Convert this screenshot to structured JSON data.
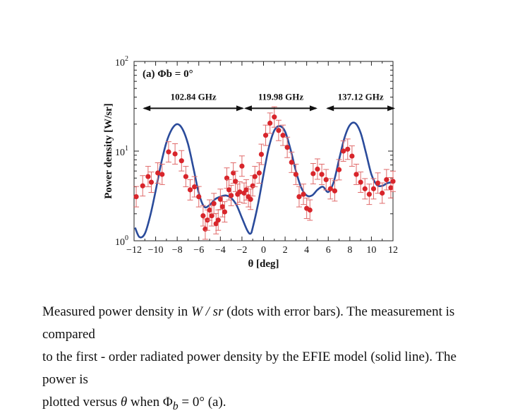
{
  "chart_data": {
    "type": "scatter",
    "title": "",
    "panel_label": "(a) Φb = 0°",
    "xlabel": "θ [deg]",
    "ylabel": "Power density [W/sr]",
    "xlim": [
      -12,
      12
    ],
    "ylim": [
      1,
      100
    ],
    "yscale": "log",
    "x_ticks": [
      -12,
      -10,
      -8,
      -6,
      -4,
      -2,
      0,
      2,
      4,
      6,
      8,
      10,
      12
    ],
    "x_tick_labels": [
      "−12",
      "−10",
      "−8",
      "−6",
      "−4",
      "−2",
      "0",
      "2",
      "4",
      "6",
      "8",
      "10",
      "12"
    ],
    "y_ticks": [
      {
        "value": 1,
        "base": "10",
        "exp": "0"
      },
      {
        "value": 10,
        "base": "10",
        "exp": "1"
      },
      {
        "value": 100,
        "base": "10",
        "exp": "2"
      }
    ],
    "grid": false,
    "frequency_bands": [
      {
        "label": "102.84 GHz",
        "x_start": -11.2,
        "x_end": -1.8,
        "y": 30
      },
      {
        "label": "119.98 GHz",
        "x_start": -1.8,
        "x_end": 5.0,
        "y": 30
      },
      {
        "label": "137.12 GHz",
        "x_start": 5.8,
        "x_end": 12.2,
        "y": 30
      }
    ],
    "series": [
      {
        "name": "EFIE model (solid line)",
        "kind": "line",
        "color": "#2a4b9b",
        "x": [
          -11.9,
          -11.5,
          -11,
          -10.5,
          -10,
          -9.5,
          -9,
          -8.5,
          -8,
          -7.5,
          -7,
          -6.5,
          -6,
          -5.5,
          -5,
          -4.5,
          -4,
          -3.5,
          -3,
          -2.5,
          -2,
          -1.5,
          -1.2,
          -1,
          -0.5,
          0,
          0.5,
          1,
          1.5,
          2,
          2.5,
          3,
          3.5,
          4,
          4.5,
          5,
          5.5,
          6,
          6.5,
          7,
          7.5,
          8,
          8.5,
          9,
          9.5,
          10,
          10.5,
          11,
          11.5,
          12
        ],
        "y": [
          1.4,
          1.1,
          1.2,
          1.9,
          3.6,
          7.2,
          12.5,
          17.5,
          20,
          17.5,
          12,
          6.5,
          3.4,
          2.4,
          2.5,
          2.9,
          3.1,
          3.2,
          3.0,
          2.5,
          1.8,
          1.3,
          1.2,
          1.4,
          2.6,
          5.5,
          11,
          17,
          19,
          16.5,
          10.5,
          6,
          3.9,
          3.2,
          3.2,
          3.7,
          4,
          3.5,
          4.5,
          8,
          14,
          19.5,
          20.5,
          16,
          9.5,
          5.5,
          4.2,
          4.1,
          4.4,
          4.5
        ]
      },
      {
        "name": "Measured (dots with error bars)",
        "kind": "points",
        "color": "#d8252b",
        "error_frac": 0.3,
        "x": [
          -11.8,
          -11.2,
          -10.7,
          -10.4,
          -9.8,
          -9.4,
          -8.8,
          -8.2,
          -7.6,
          -7.2,
          -6.8,
          -6.4,
          -6,
          -5.6,
          -5.4,
          -5.2,
          -5,
          -4.8,
          -4.6,
          -4.4,
          -4.2,
          -4,
          -3.8,
          -3.6,
          -3.4,
          -3.2,
          -3,
          -2.8,
          -2.6,
          -2.4,
          -2.2,
          -2,
          -1.8,
          -1.6,
          -1.4,
          -1.2,
          -1,
          -0.8,
          -0.4,
          -0.2,
          0.2,
          0.6,
          1,
          1.4,
          1.8,
          2.2,
          2.6,
          3,
          3.3,
          3.7,
          4,
          4.3,
          4.6,
          5,
          5.4,
          5.8,
          6.2,
          6.6,
          7,
          7.4,
          7.8,
          8.2,
          8.6,
          9,
          9.4,
          9.8,
          10.2,
          10.6,
          11,
          11.4,
          11.8,
          12
        ],
        "y": [
          3.1,
          4.1,
          5.2,
          4.5,
          5.7,
          5.5,
          9.8,
          9.3,
          7.8,
          5.2,
          3.7,
          4.0,
          3.1,
          1.9,
          1.35,
          1.7,
          2.2,
          1.9,
          2.6,
          1.55,
          1.7,
          2.9,
          2.4,
          2.1,
          5.0,
          3.7,
          3.2,
          5.7,
          4.6,
          3.3,
          3.5,
          6.8,
          3.4,
          3.7,
          3.1,
          2.9,
          4.1,
          5.2,
          5.7,
          9.2,
          15,
          20.5,
          24,
          17,
          15,
          11,
          7.5,
          5.5,
          3.1,
          3.3,
          2.3,
          2.2,
          5.6,
          6.3,
          5.5,
          4.8,
          3.8,
          3.6,
          6.2,
          10,
          10.5,
          8.8,
          5.5,
          4.5,
          3.8,
          3.3,
          3.8,
          4.4,
          3.4,
          4.8,
          3.9,
          4.6
        ]
      }
    ]
  },
  "caption": {
    "line1_a": "Measured power density in ",
    "line1_unit": "W / sr",
    "line1_b": " (dots with error bars). The measurement is compared",
    "line2": "to the first - order radiated power density by the EFIE model (solid line). The power is",
    "line3_a": "plotted versus ",
    "line3_theta": "θ",
    "line3_b": " when ",
    "line3_phi": "Φ",
    "line3_sub": "b",
    "line3_c": " = 0° (a)."
  }
}
